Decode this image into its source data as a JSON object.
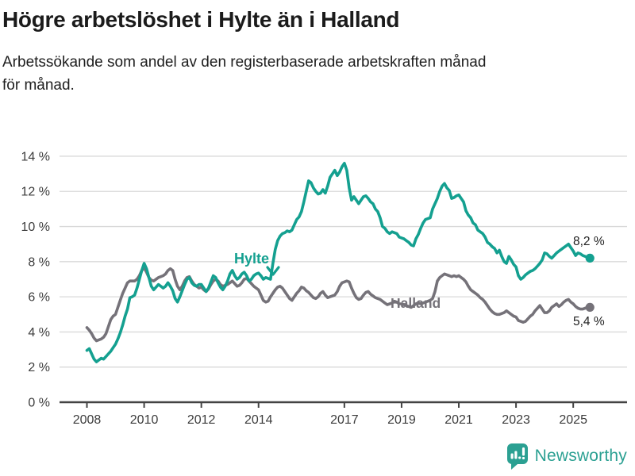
{
  "header": {
    "title": "Högre arbetslöshet i Hylte än i Halland",
    "subtitle_line1": "Arbetssökande som andel av den registerbaserade arbetskraften månad",
    "subtitle_line2": "för månad."
  },
  "chart_data": {
    "type": "line",
    "title": "Högre arbetslöshet i Hylte än i Halland",
    "subtitle": "Arbetssökande som andel av den registerbaserade arbetskraften månad för månad.",
    "unit": "%",
    "x_start_year": 2008,
    "x_start_month": 1,
    "x_interval": "monthly",
    "x_end": "2025-08",
    "x_ticks": [
      2008,
      2010,
      2012,
      2014,
      2017,
      2019,
      2021,
      2023,
      2025
    ],
    "y_ticks": [
      0,
      2,
      4,
      6,
      8,
      10,
      12,
      14
    ],
    "y_tick_suffix": " %",
    "ylim": [
      0,
      14
    ],
    "grid": true,
    "legend_position": "inline-labels",
    "series": [
      {
        "name": "Halland",
        "color": "#757279",
        "end_value": 5.4,
        "end_label": "5,4 %",
        "values": [
          4.25,
          4.1,
          3.9,
          3.65,
          3.5,
          3.55,
          3.6,
          3.7,
          3.9,
          4.3,
          4.7,
          4.9,
          5.0,
          5.4,
          5.8,
          6.2,
          6.5,
          6.8,
          6.9,
          6.9,
          6.9,
          7.0,
          7.2,
          7.5,
          7.65,
          7.4,
          7.1,
          6.95,
          6.9,
          7.0,
          7.1,
          7.15,
          7.2,
          7.3,
          7.5,
          7.6,
          7.5,
          7.0,
          6.6,
          6.4,
          6.6,
          6.9,
          7.1,
          7.15,
          6.9,
          6.7,
          6.6,
          6.5,
          6.55,
          6.4,
          6.3,
          6.45,
          6.7,
          6.9,
          7.0,
          6.9,
          6.7,
          6.6,
          6.65,
          6.7,
          6.8,
          6.9,
          6.75,
          6.6,
          6.65,
          6.8,
          7.0,
          7.05,
          6.9,
          6.75,
          6.6,
          6.5,
          6.4,
          6.1,
          5.8,
          5.7,
          5.75,
          6.0,
          6.2,
          6.4,
          6.55,
          6.6,
          6.5,
          6.3,
          6.1,
          5.9,
          5.8,
          6.0,
          6.2,
          6.35,
          6.55,
          6.5,
          6.35,
          6.25,
          6.1,
          5.95,
          5.9,
          6.0,
          6.2,
          6.3,
          6.1,
          5.95,
          6.0,
          6.05,
          6.1,
          6.3,
          6.6,
          6.8,
          6.85,
          6.9,
          6.85,
          6.5,
          6.2,
          5.95,
          5.85,
          5.9,
          6.1,
          6.25,
          6.3,
          6.15,
          6.05,
          5.95,
          5.9,
          5.85,
          5.75,
          5.65,
          5.55,
          5.6,
          5.65,
          5.75,
          5.7,
          5.6,
          5.6,
          5.55,
          5.5,
          5.45,
          5.4,
          5.5,
          5.6,
          5.65,
          5.6,
          5.65,
          5.7,
          5.75,
          5.8,
          5.9,
          6.3,
          6.9,
          7.1,
          7.2,
          7.3,
          7.25,
          7.2,
          7.15,
          7.2,
          7.15,
          7.2,
          7.1,
          7.0,
          6.85,
          6.6,
          6.4,
          6.3,
          6.2,
          6.1,
          5.95,
          5.85,
          5.7,
          5.5,
          5.3,
          5.15,
          5.05,
          5.0,
          5.0,
          5.05,
          5.1,
          5.2,
          5.1,
          5.0,
          4.9,
          4.85,
          4.65,
          4.6,
          4.55,
          4.6,
          4.75,
          4.9,
          5.0,
          5.2,
          5.35,
          5.5,
          5.3,
          5.1,
          5.1,
          5.2,
          5.4,
          5.5,
          5.6,
          5.45,
          5.55,
          5.7,
          5.8,
          5.85,
          5.7,
          5.6,
          5.45,
          5.35,
          5.3,
          5.3,
          5.35,
          5.4,
          5.4
        ]
      },
      {
        "name": "Hylte",
        "color": "#14a090",
        "end_value": 8.2,
        "end_label": "8,2 %",
        "values": [
          2.95,
          3.05,
          2.75,
          2.45,
          2.3,
          2.4,
          2.5,
          2.45,
          2.6,
          2.75,
          2.9,
          3.1,
          3.3,
          3.6,
          3.95,
          4.4,
          4.9,
          5.3,
          5.95,
          6.0,
          6.1,
          6.5,
          7.0,
          7.5,
          7.9,
          7.6,
          7.1,
          6.6,
          6.4,
          6.55,
          6.7,
          6.6,
          6.5,
          6.6,
          6.8,
          6.6,
          6.35,
          5.9,
          5.7,
          6.0,
          6.35,
          6.7,
          7.0,
          7.1,
          6.8,
          6.65,
          6.6,
          6.7,
          6.7,
          6.5,
          6.3,
          6.5,
          6.85,
          7.2,
          7.1,
          6.8,
          6.55,
          6.4,
          6.6,
          6.9,
          7.3,
          7.5,
          7.2,
          7.0,
          7.1,
          7.3,
          7.4,
          7.2,
          6.9,
          7.0,
          7.2,
          7.3,
          7.35,
          7.2,
          7.0,
          7.1,
          7.05,
          7.0,
          7.9,
          8.7,
          9.2,
          9.45,
          9.6,
          9.65,
          9.75,
          9.7,
          9.8,
          10.1,
          10.4,
          10.55,
          10.85,
          11.4,
          12.0,
          12.6,
          12.5,
          12.2,
          12.0,
          11.85,
          11.9,
          12.1,
          11.9,
          12.3,
          12.8,
          13.0,
          13.2,
          12.9,
          13.1,
          13.4,
          13.6,
          13.2,
          12.2,
          11.5,
          11.7,
          11.5,
          11.3,
          11.5,
          11.7,
          11.75,
          11.6,
          11.4,
          11.3,
          11.0,
          10.85,
          10.5,
          10.0,
          9.9,
          9.7,
          9.6,
          9.7,
          9.65,
          9.6,
          9.4,
          9.35,
          9.3,
          9.2,
          9.1,
          8.95,
          8.9,
          9.3,
          9.55,
          9.9,
          10.2,
          10.4,
          10.45,
          10.5,
          11.0,
          11.3,
          11.6,
          12.0,
          12.3,
          12.45,
          12.2,
          12.05,
          11.6,
          11.65,
          11.75,
          11.8,
          11.6,
          11.4,
          10.9,
          10.65,
          10.5,
          10.2,
          10.1,
          9.8,
          9.7,
          9.6,
          9.4,
          9.1,
          9.0,
          8.85,
          8.75,
          8.5,
          8.65,
          8.3,
          8.0,
          7.9,
          8.3,
          8.1,
          7.85,
          7.7,
          7.2,
          7.0,
          7.1,
          7.25,
          7.35,
          7.45,
          7.5,
          7.6,
          7.75,
          7.9,
          8.1,
          8.5,
          8.45,
          8.3,
          8.2,
          8.35,
          8.5,
          8.6,
          8.7,
          8.8,
          8.9,
          9.0,
          8.8,
          8.6,
          8.35,
          8.5,
          8.45,
          8.35,
          8.3,
          8.25,
          8.2
        ]
      }
    ],
    "colors": {
      "hylte": "#14a090",
      "halland": "#757279",
      "gridline": "#d9d9d9",
      "axis": "#434343",
      "tick_text": "#3c3c3c",
      "end_label_text": "#1f1f1f"
    }
  },
  "footer": {
    "brand": "Newsworthy",
    "logo_icon": "bar-chart-speech-bubble-icon",
    "brand_color": "#2ba092"
  }
}
